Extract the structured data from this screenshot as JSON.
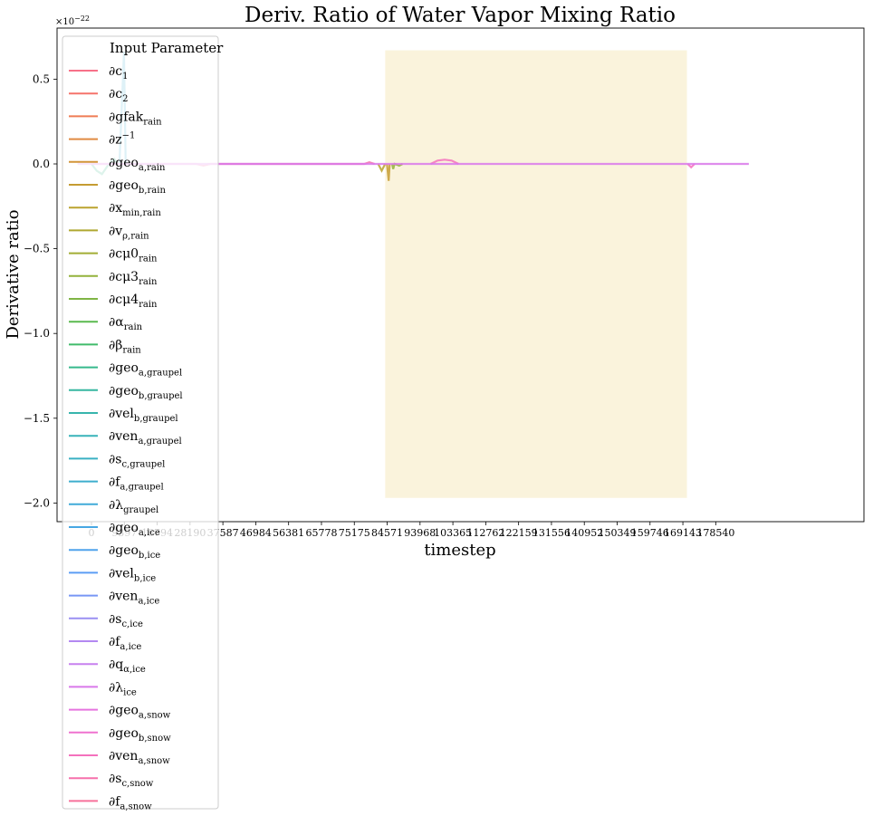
{
  "chart_data": {
    "type": "line",
    "title": "Deriv. Ratio of Water Vapor Mixing Ratio",
    "xlabel": "timestep",
    "ylabel": "Derivative ratio",
    "y_offset_label": "×10",
    "y_offset_exponent": "−22",
    "xlim": [
      -9000,
      192000
    ],
    "ylim": [
      -2.1,
      0.8
    ],
    "grid": false,
    "x_ticks": [
      {
        "value": 0,
        "label": "0"
      },
      {
        "value": 9397,
        "label": "9397"
      },
      {
        "value": 18794,
        "label": "18794"
      },
      {
        "value": 28190,
        "label": "28190"
      },
      {
        "value": 37587,
        "label": "37587"
      },
      {
        "value": 46984,
        "label": "46984"
      },
      {
        "value": 56381,
        "label": "56381"
      },
      {
        "value": 65778,
        "label": "65778"
      },
      {
        "value": 75175,
        "label": "75175"
      },
      {
        "value": 84571,
        "label": "84571"
      },
      {
        "value": 93968,
        "label": "93968"
      },
      {
        "value": 103365,
        "label": "103365"
      },
      {
        "value": 112762,
        "label": "112762"
      },
      {
        "value": 122159,
        "label": "122159"
      },
      {
        "value": 131556,
        "label": "131556"
      },
      {
        "value": 140952,
        "label": "140952"
      },
      {
        "value": 150349,
        "label": "150349"
      },
      {
        "value": 159746,
        "label": "159746"
      },
      {
        "value": 169143,
        "label": "169143"
      },
      {
        "value": 178540,
        "label": "178540"
      }
    ],
    "y_ticks": [
      {
        "value": 0.5,
        "label": "0.5"
      },
      {
        "value": 0.0,
        "label": "0.0"
      },
      {
        "value": -0.5,
        "label": "−0.5"
      },
      {
        "value": -1.0,
        "label": "−1.0"
      },
      {
        "value": -1.5,
        "label": "−1.5"
      },
      {
        "value": -2.0,
        "label": "−2.0"
      }
    ],
    "highlight_region": {
      "x": [
        84000,
        170300
      ],
      "y": [
        -1.97,
        0.67
      ],
      "color": "#faf3dc"
    },
    "legend": {
      "title": "Input Parameter",
      "placement": "upper-left"
    },
    "series": [
      {
        "name": "∂c",
        "sub": "1",
        "color": "#f77189"
      },
      {
        "name": "∂c",
        "sub": "2",
        "color": "#f5736b"
      },
      {
        "name": "∂gfak",
        "sub": "rain",
        "color": "#ef7c55"
      },
      {
        "name": "∂z",
        "sup": "−1",
        "color": "#e08a42"
      },
      {
        "name": "∂geo",
        "sub": "a,rain",
        "color": "#d29538"
      },
      {
        "name": "∂geo",
        "sub": "b,rain",
        "color": "#c59c32"
      },
      {
        "name": "∂x",
        "sub": "min,rain",
        "color": "#bba32f"
      },
      {
        "name": "∂v",
        "sub": "ρ,rain",
        "color": "#afa831"
      },
      {
        "name": "∂cμ0",
        "sub": "rain",
        "color": "#a2ad35"
      },
      {
        "name": "∂cμ3",
        "sub": "rain",
        "color": "#93b23b"
      },
      {
        "name": "∂cμ4",
        "sub": "rain",
        "color": "#7fb545"
      },
      {
        "name": "∂α",
        "sub": "rain",
        "color": "#5ab94f"
      },
      {
        "name": "∂β",
        "sub": "rain",
        "color": "#40bb6a"
      },
      {
        "name": "∂geo",
        "sub": "a,graupel",
        "color": "#36b98c"
      },
      {
        "name": "∂geo",
        "sub": "b,graupel",
        "color": "#36b7a0"
      },
      {
        "name": "∂vel",
        "sub": "b,graupel",
        "color": "#37b5ad"
      },
      {
        "name": "∂ven",
        "sub": "a,graupel",
        "color": "#38b3b9"
      },
      {
        "name": "∂s",
        "sub": "c,graupel",
        "color": "#3ab1c3"
      },
      {
        "name": "∂f",
        "sub": "a,graupel",
        "color": "#3daecd"
      },
      {
        "name": "∂λ",
        "sub": "graupel",
        "color": "#41abd8"
      },
      {
        "name": "∂geo",
        "sub": "a,ice",
        "color": "#47a7e3"
      },
      {
        "name": "∂geo",
        "sub": "b,ice",
        "color": "#50a3ec"
      },
      {
        "name": "∂vel",
        "sub": "b,ice",
        "color": "#5c9ef4"
      },
      {
        "name": "∂ven",
        "sub": "a,ice",
        "color": "#7896f5"
      },
      {
        "name": "∂s",
        "sub": "c,ice",
        "color": "#9a8ff2"
      },
      {
        "name": "∂f",
        "sub": "a,ice",
        "color": "#b388f1"
      },
      {
        "name": "∂q",
        "sub": "α,ice",
        "color": "#c780ef"
      },
      {
        "name": "∂λ",
        "sub": "ice",
        "color": "#d979ea"
      },
      {
        "name": "∂geo",
        "sub": "a,snow",
        "color": "#e674df"
      },
      {
        "name": "∂geo",
        "sub": "b,snow",
        "color": "#ef72cf"
      },
      {
        "name": "∂ven",
        "sub": "a,snow",
        "color": "#f471bd"
      },
      {
        "name": "∂s",
        "sub": "c,snow",
        "color": "#f670ab"
      },
      {
        "name": "∂f",
        "sub": "a,snow",
        "color": "#f7719a"
      }
    ],
    "visible_traces": [
      {
        "color": "#36b98c",
        "points": [
          [
            0,
            0
          ],
          [
            1500,
            -0.04
          ],
          [
            3000,
            -0.06
          ],
          [
            5000,
            0.0
          ],
          [
            6500,
            0.03
          ],
          [
            7500,
            0.0
          ]
        ]
      },
      {
        "color": "#3daecd",
        "points": [
          [
            8000,
            0
          ],
          [
            9000,
            0.5
          ],
          [
            9300,
            0.66
          ],
          [
            9800,
            0.0
          ]
        ]
      },
      {
        "color": "#f670ab",
        "points": [
          [
            0,
            0
          ],
          [
            30000,
            0
          ],
          [
            32000,
            -0.01
          ],
          [
            34000,
            0
          ],
          [
            78000,
            0
          ],
          [
            79500,
            0.01
          ],
          [
            81000,
            0
          ]
        ]
      },
      {
        "color": "#bba32f",
        "points": [
          [
            82000,
            0
          ],
          [
            83000,
            -0.04
          ],
          [
            84000,
            0.0
          ]
        ]
      },
      {
        "color": "#c59c32",
        "points": [
          [
            84500,
            0
          ],
          [
            85000,
            -0.1
          ],
          [
            85300,
            0.0
          ]
        ]
      },
      {
        "color": "#93b23b",
        "points": [
          [
            86000,
            0
          ],
          [
            86300,
            -0.03
          ],
          [
            86700,
            0
          ],
          [
            88000,
            -0.01
          ],
          [
            89000,
            0
          ]
        ]
      },
      {
        "color": "#f471bd",
        "points": [
          [
            97000,
            0
          ],
          [
            99000,
            0.02
          ],
          [
            101000,
            0.025
          ],
          [
            103000,
            0.02
          ],
          [
            105000,
            0
          ]
        ]
      },
      {
        "color": "#f471bd",
        "points": [
          [
            170500,
            0
          ],
          [
            171500,
            -0.02
          ],
          [
            172500,
            0
          ]
        ]
      },
      {
        "color": "#d979ea",
        "points": [
          [
            -4000,
            0
          ],
          [
            60000,
            0
          ],
          [
            120000,
            0
          ],
          [
            188000,
            0
          ]
        ]
      }
    ]
  }
}
